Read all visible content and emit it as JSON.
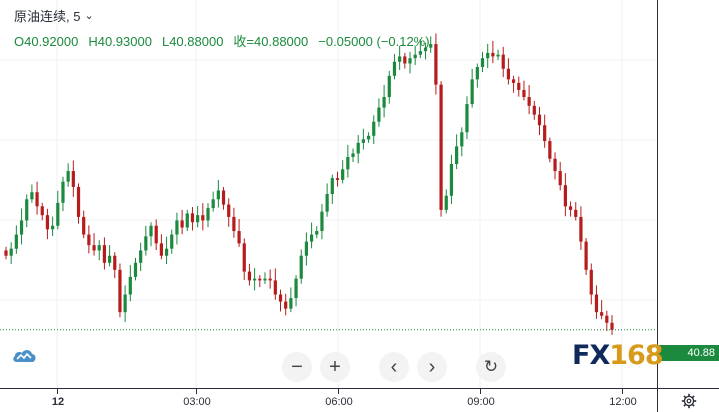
{
  "legend": {
    "symbol": "原油连续, 5",
    "open": "O40.92000",
    "high": "H40.93000",
    "low": "L40.88000",
    "close": "收=40.88000",
    "change": "−0.05000 (−0.12%)"
  },
  "toolbar": {
    "zoom_out": "−",
    "zoom_in": "+",
    "scroll_left": "‹",
    "scroll_right": "›",
    "reset": "↻"
  },
  "price_tag": "40.88",
  "time_axis": [
    {
      "label": "12",
      "bold": true
    },
    {
      "label": "03:00",
      "bold": false
    },
    {
      "label": "06:00",
      "bold": false
    },
    {
      "label": "09:00",
      "bold": false
    },
    {
      "label": "12:00",
      "bold": false
    }
  ],
  "watermark": {
    "fx": "FX",
    "num": "168"
  },
  "colors": {
    "up": "#1b8a3e",
    "down": "#b71c1c",
    "grid": "#eef0f3",
    "axis": "#2a2e39",
    "price_tag_bg": "#1b8a3e",
    "cloud": "#4a90c8",
    "watermark_blue": "#0f2a5a",
    "watermark_gold": "#d89a1a"
  },
  "icons": {
    "cloud": "cloud-icon",
    "settings": "gear-icon"
  },
  "chart_data": {
    "type": "candlestick",
    "interval": "5",
    "last_close": 40.88,
    "price_axis_labels": [],
    "x_ticks": [
      "12",
      "03:00",
      "06:00",
      "09:00",
      "12:00"
    ],
    "close_path_note": "",
    "closes": [
      41.3,
      41.34,
      41.42,
      41.5,
      41.62,
      41.66,
      41.58,
      41.53,
      41.45,
      41.47,
      41.6,
      41.72,
      41.78,
      41.69,
      41.52,
      41.42,
      41.36,
      41.33,
      41.36,
      41.26,
      41.3,
      41.22,
      40.98,
      41.08,
      41.18,
      41.26,
      41.33,
      41.41,
      41.47,
      41.37,
      41.3,
      41.34,
      41.42,
      41.5,
      41.46,
      41.54,
      41.49,
      41.53,
      41.5,
      41.57,
      41.62,
      41.67,
      41.59,
      41.52,
      41.44,
      41.37,
      41.21,
      41.16,
      41.17,
      41.16,
      41.17,
      41.16,
      41.08,
      41.04,
      41.0,
      41.06,
      41.17,
      41.3,
      41.38,
      41.42,
      41.44,
      41.55,
      41.65,
      41.74,
      41.73,
      41.79,
      41.86,
      41.88,
      41.94,
      41.96,
      41.98,
      42.06,
      42.14,
      42.2,
      42.32,
      42.4,
      42.43,
      42.39,
      42.42,
      42.44,
      42.46,
      42.48,
      42.5,
      42.27,
      41.56,
      41.64,
      41.82,
      41.92,
      42.0,
      42.16,
      42.3,
      42.37,
      42.42,
      42.45,
      42.43,
      42.44,
      42.36,
      42.3,
      42.28,
      42.24,
      42.2,
      42.15,
      42.1,
      42.04,
      41.95,
      41.85,
      41.78,
      41.7,
      41.58,
      41.56,
      41.52,
      41.38,
      41.22,
      41.08,
      40.98,
      40.96,
      40.92,
      40.88
    ]
  }
}
